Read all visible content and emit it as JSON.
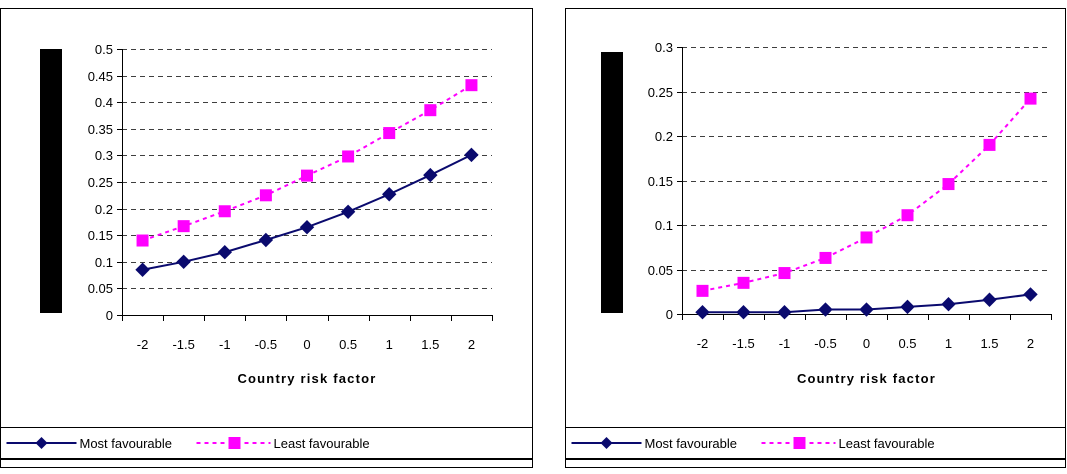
{
  "chart_data": [
    {
      "type": "line",
      "title": "",
      "xlabel": "Country risk factor",
      "ylabel": "",
      "categories": [
        "-2",
        "-1.5",
        "-1",
        "-0.5",
        "0",
        "0.5",
        "1",
        "1.5",
        "2"
      ],
      "y_ticks": [
        "0",
        "0.05",
        "0.1",
        "0.15",
        "0.2",
        "0.25",
        "0.3",
        "0.35",
        "0.4",
        "0.45",
        "0.5"
      ],
      "ylim": [
        0,
        0.5
      ],
      "grid": "horizontal dashed",
      "legend_position": "bottom",
      "series": [
        {
          "name": "Most favourable",
          "values": [
            0.085,
            0.1,
            0.118,
            0.141,
            0.165,
            0.194,
            0.227,
            0.263,
            0.301
          ],
          "color": "#0a0a6e",
          "style": "solid",
          "marker": "diamond"
        },
        {
          "name": "Least favourable",
          "values": [
            0.14,
            0.167,
            0.195,
            0.225,
            0.262,
            0.298,
            0.342,
            0.385,
            0.432
          ],
          "color": "#ff00ff",
          "style": "dashed",
          "marker": "square"
        }
      ]
    },
    {
      "type": "line",
      "title": "",
      "xlabel": "Country risk factor",
      "ylabel": "",
      "categories": [
        "-2",
        "-1.5",
        "-1",
        "-0.5",
        "0",
        "0.5",
        "1",
        "1.5",
        "2"
      ],
      "y_ticks": [
        "0",
        "0.05",
        "0.1",
        "0.15",
        "0.2",
        "0.25",
        "0.3"
      ],
      "ylim": [
        0,
        0.3
      ],
      "grid": "horizontal dashed",
      "legend_position": "bottom",
      "series": [
        {
          "name": "Most favourable",
          "values": [
            0.002,
            0.002,
            0.002,
            0.005,
            0.005,
            0.008,
            0.011,
            0.016,
            0.022
          ],
          "color": "#0a0a6e",
          "style": "solid",
          "marker": "diamond"
        },
        {
          "name": "Least favourable",
          "values": [
            0.026,
            0.035,
            0.046,
            0.063,
            0.086,
            0.111,
            0.146,
            0.19,
            0.242
          ],
          "color": "#ff00ff",
          "style": "dashed",
          "marker": "square"
        }
      ]
    }
  ]
}
